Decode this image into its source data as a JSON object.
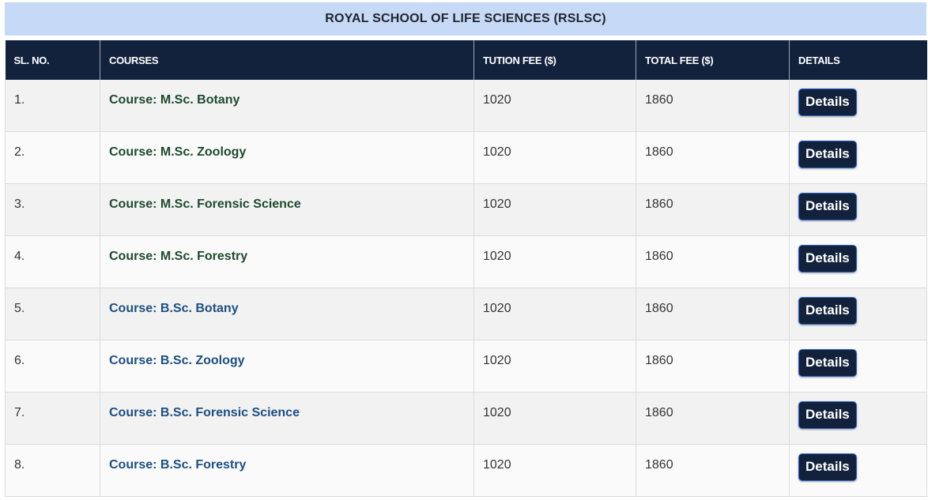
{
  "school": {
    "title": "ROYAL SCHOOL OF LIFE SCIENCES (RSLSC)"
  },
  "table": {
    "headers": [
      "SL. NO.",
      "COURSES",
      "TUTION FEE ($)",
      "TOTAL FEE ($)",
      "DETAILS"
    ],
    "rows": [
      {
        "sl": "1.",
        "course": "Course: M.Sc. Botany",
        "level": "msc",
        "tuition": "1020",
        "total": "1860",
        "button": "Details"
      },
      {
        "sl": "2.",
        "course": "Course: M.Sc. Zoology",
        "level": "msc",
        "tuition": "1020",
        "total": "1860",
        "button": "Details"
      },
      {
        "sl": "3.",
        "course": "Course: M.Sc. Forensic Science",
        "level": "msc",
        "tuition": "1020",
        "total": "1860",
        "button": "Details"
      },
      {
        "sl": "4.",
        "course": "Course: M.Sc. Forestry",
        "level": "msc",
        "tuition": "1020",
        "total": "1860",
        "button": "Details"
      },
      {
        "sl": "5.",
        "course": "Course: B.Sc. Botany",
        "level": "bsc",
        "tuition": "1020",
        "total": "1860",
        "button": "Details"
      },
      {
        "sl": "6.",
        "course": "Course: B.Sc. Zoology",
        "level": "bsc",
        "tuition": "1020",
        "total": "1860",
        "button": "Details"
      },
      {
        "sl": "7.",
        "course": "Course: B.Sc. Forensic Science",
        "level": "bsc",
        "tuition": "1020",
        "total": "1860",
        "button": "Details"
      },
      {
        "sl": "8.",
        "course": "Course: B.Sc. Forestry",
        "level": "bsc",
        "tuition": "1020",
        "total": "1860",
        "button": "Details"
      }
    ]
  },
  "colors": {
    "title_bg": "#c6d9f7",
    "header_bg": "#13223c",
    "msc_course": "#1e4a2c",
    "bsc_course": "#1d4f80",
    "button_bg": "#13223c"
  }
}
